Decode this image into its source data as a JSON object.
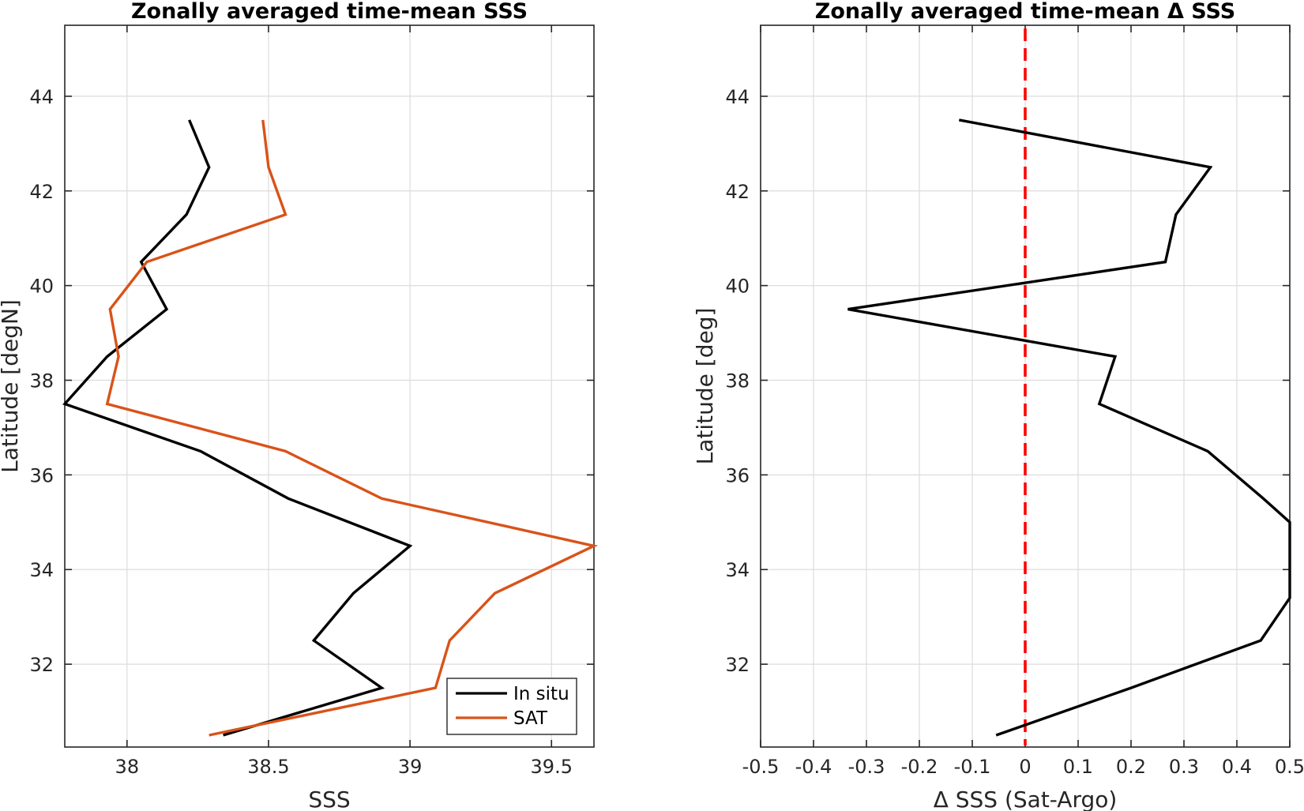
{
  "chart_data": [
    {
      "type": "line",
      "title": "Zonally averaged time-mean SSS",
      "xlabel": "SSS",
      "ylabel": "Latitude [degN]",
      "xlim": [
        37.78,
        39.65
      ],
      "ylim": [
        30.25,
        45.5
      ],
      "xticks": [
        38,
        38.5,
        39,
        39.5
      ],
      "xtick_labels": [
        "38",
        "38.5",
        "39",
        "39.5"
      ],
      "yticks": [
        32,
        34,
        36,
        38,
        40,
        42,
        44
      ],
      "ytick_labels": [
        "32",
        "34",
        "36",
        "38",
        "40",
        "42",
        "44"
      ],
      "grid": true,
      "legend_position": "bottom-right",
      "series": [
        {
          "name": "In situ",
          "color": "#000000",
          "x": [
            38.34,
            38.9,
            38.66,
            38.8,
            39.0,
            38.57,
            38.26,
            37.78,
            37.93,
            38.14,
            38.05,
            38.21,
            38.29,
            38.22
          ],
          "y": [
            30.5,
            31.5,
            32.5,
            33.5,
            34.5,
            35.5,
            36.5,
            37.5,
            38.5,
            39.5,
            40.5,
            41.5,
            42.5,
            43.5
          ]
        },
        {
          "name": "SAT",
          "color": "#D95319",
          "x": [
            38.29,
            39.09,
            39.14,
            39.3,
            39.65,
            38.9,
            38.56,
            37.93,
            37.97,
            37.94,
            38.07,
            38.56,
            38.5,
            38.48
          ],
          "y": [
            30.5,
            31.5,
            32.5,
            33.5,
            34.5,
            35.5,
            36.5,
            37.5,
            38.5,
            39.5,
            40.5,
            41.5,
            42.5,
            43.5
          ]
        }
      ]
    },
    {
      "type": "line",
      "title": "Zonally averaged time-mean Δ SSS",
      "xlabel": "Δ SSS (Sat-Argo)",
      "ylabel": "Latitude [deg]",
      "xlim": [
        -0.5,
        0.5
      ],
      "ylim": [
        30.25,
        45.5
      ],
      "xticks": [
        -0.5,
        -0.4,
        -0.3,
        -0.2,
        -0.1,
        0,
        0.1,
        0.2,
        0.3,
        0.4,
        0.5
      ],
      "xtick_labels": [
        "-0.5",
        "-0.4",
        "-0.3",
        "-0.2",
        "-0.1",
        "0",
        "0.1",
        "0.2",
        "0.3",
        "0.4",
        "0.5"
      ],
      "yticks": [
        32,
        34,
        36,
        38,
        40,
        42,
        44
      ],
      "ytick_labels": [
        "32",
        "34",
        "36",
        "38",
        "40",
        "42",
        "44"
      ],
      "grid": true,
      "reference_line": {
        "x": 0,
        "color": "#ff0000",
        "style": "dashed"
      },
      "series": [
        {
          "color": "#000000",
          "x": [
            -0.055,
            0.2,
            0.445,
            0.5,
            0.5,
            0.45,
            0.345,
            0.14,
            0.17,
            -0.335,
            0.265,
            0.285,
            0.35,
            -0.125
          ],
          "y": [
            30.5,
            31.5,
            32.5,
            33.4,
            35.0,
            35.5,
            36.5,
            37.5,
            38.5,
            39.5,
            40.5,
            41.5,
            42.5,
            43.5
          ]
        }
      ]
    }
  ]
}
